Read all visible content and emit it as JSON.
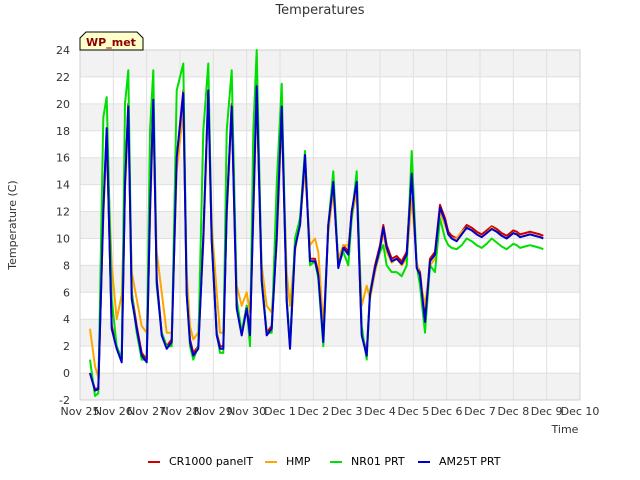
{
  "chart_data": {
    "type": "line",
    "title": "Temperatures",
    "xlabel": "Time",
    "ylabel": "Temperature (C)",
    "badge": "WP_met",
    "ylim": [
      -2,
      24
    ],
    "yticks": [
      -2,
      0,
      2,
      4,
      6,
      8,
      10,
      12,
      14,
      16,
      18,
      20,
      22,
      24
    ],
    "ytick_labels": [
      "-2",
      "0",
      "2",
      "4",
      "6",
      "8",
      "10",
      "12",
      "14",
      "16",
      "18",
      "20",
      "22",
      "24"
    ],
    "xlim": [
      0,
      15
    ],
    "xticks": [
      0,
      1,
      2,
      3,
      4,
      5,
      6,
      7,
      8,
      9,
      10,
      11,
      12,
      13,
      14,
      15
    ],
    "xtick_labels": [
      "Nov 25",
      "Nov 26",
      "Nov 27",
      "Nov 28",
      "Nov 29",
      "Nov 30",
      "Dec 1",
      "Dec 2",
      "Dec 3",
      "Dec 4",
      "Dec 5",
      "Dec 6",
      "Dec 7",
      "Dec 8",
      "Dec 9",
      "Dec 10"
    ],
    "x_unit": "days since Nov 25",
    "colors": {
      "background": "#ffffff",
      "band": "#f2f2f2",
      "grid": "#e0e0e0",
      "badge_fill": "#ffffcc",
      "badge_text": "#8b0000"
    },
    "series": [
      {
        "name": "CR1000 panelT",
        "color": "#cc0000",
        "x": [
          0.3,
          0.45,
          0.55,
          0.7,
          0.8,
          0.95,
          1.1,
          1.25,
          1.35,
          1.45,
          1.55,
          1.7,
          1.85,
          2.0,
          2.1,
          2.2,
          2.3,
          2.45,
          2.6,
          2.75,
          2.9,
          3.1,
          3.2,
          3.3,
          3.4,
          3.55,
          3.7,
          3.85,
          3.95,
          4.1,
          4.2,
          4.3,
          4.4,
          4.55,
          4.7,
          4.85,
          5.0,
          5.1,
          5.2,
          5.3,
          5.45,
          5.6,
          5.75,
          5.9,
          6.05,
          6.2,
          6.3,
          6.45,
          6.6,
          6.75,
          6.9,
          7.05,
          7.15,
          7.3,
          7.45,
          7.6,
          7.75,
          7.9,
          8.05,
          8.15,
          8.3,
          8.45,
          8.6,
          8.7,
          8.85,
          9.0,
          9.1,
          9.2,
          9.35,
          9.5,
          9.65,
          9.8,
          9.95,
          10.1,
          10.2,
          10.35,
          10.5,
          10.65,
          10.8,
          10.95,
          11.05,
          11.15,
          11.3,
          11.45,
          11.6,
          11.75,
          11.9,
          12.05,
          12.2,
          12.35,
          12.5,
          12.65,
          12.8,
          12.9,
          13.0,
          13.1,
          13.2,
          13.35,
          13.5,
          13.65,
          13.8,
          13.9
        ],
        "values": [
          0.0,
          -1.2,
          -1.1,
          12.0,
          18.0,
          3.5,
          2.0,
          1.0,
          14.0,
          20.0,
          6.0,
          3.5,
          1.5,
          1.0,
          12.0,
          20.5,
          7.0,
          3.0,
          2.0,
          2.5,
          16.0,
          21.0,
          6.0,
          2.5,
          1.5,
          2.0,
          10.0,
          21.0,
          10.0,
          3.0,
          2.0,
          2.0,
          12.0,
          20.0,
          5.0,
          3.0,
          5.0,
          3.0,
          12.0,
          21.5,
          7.0,
          3.0,
          3.5,
          10.0,
          20.0,
          5.5,
          2.0,
          9.5,
          11.0,
          16.0,
          8.5,
          8.5,
          7.5,
          2.5,
          11.0,
          14.0,
          8.0,
          9.5,
          9.0,
          12.0,
          14.0,
          3.0,
          1.5,
          6.0,
          8.0,
          9.5,
          11.0,
          9.5,
          8.5,
          8.7,
          8.3,
          9.0,
          15.0,
          8.0,
          7.5,
          4.0,
          8.5,
          9.0,
          12.5,
          11.5,
          10.5,
          10.2,
          10.0,
          10.5,
          11.0,
          10.8,
          10.5,
          10.3,
          10.6,
          10.9,
          10.7,
          10.4,
          10.2,
          10.4,
          10.6,
          10.5,
          10.3,
          10.4,
          10.5,
          10.4,
          10.3,
          10.2
        ]
      },
      {
        "name": "HMP",
        "color": "#ffa500",
        "x": [
          0.3,
          0.45,
          0.55,
          0.7,
          0.8,
          0.95,
          1.1,
          1.25,
          1.35,
          1.45,
          1.55,
          1.7,
          1.85,
          2.0,
          2.1,
          2.2,
          2.3,
          2.45,
          2.6,
          2.75,
          2.9,
          3.1,
          3.2,
          3.3,
          3.4,
          3.55,
          3.7,
          3.85,
          3.95,
          4.1,
          4.2,
          4.3,
          4.4,
          4.55,
          4.7,
          4.85,
          5.0,
          5.1,
          5.2,
          5.3,
          5.45,
          5.6,
          5.75,
          5.9,
          6.05,
          6.2,
          6.3,
          6.45,
          6.6,
          6.75,
          6.9,
          7.05,
          7.15,
          7.3,
          7.45,
          7.6,
          7.75,
          7.9,
          8.05,
          8.15,
          8.3,
          8.45,
          8.6,
          8.7,
          8.85,
          9.0,
          9.1,
          9.2,
          9.35,
          9.5,
          9.65,
          9.8,
          9.95,
          10.1,
          10.2,
          10.35,
          10.5,
          10.65,
          10.8,
          10.95,
          11.05,
          11.15,
          11.3,
          11.45,
          11.6,
          11.75,
          11.9,
          12.05,
          12.2,
          12.35,
          12.5,
          12.65,
          12.8,
          12.9,
          13.0,
          13.1,
          13.2,
          13.35,
          13.5,
          13.65,
          13.8,
          13.9
        ],
        "values": [
          3.3,
          0.5,
          -0.3,
          11.5,
          17.5,
          8.0,
          4.0,
          5.8,
          13.5,
          19.0,
          7.5,
          5.5,
          3.5,
          3.0,
          11.5,
          19.5,
          9.0,
          6.0,
          3.0,
          3.0,
          15.0,
          19.5,
          7.5,
          3.5,
          2.5,
          3.0,
          9.5,
          20.5,
          11.0,
          6.0,
          3.0,
          3.0,
          11.5,
          19.5,
          6.5,
          5.0,
          6.0,
          4.5,
          11.5,
          20.5,
          8.0,
          5.0,
          4.5,
          9.5,
          19.0,
          7.5,
          5.0,
          9.0,
          11.5,
          15.0,
          9.5,
          10.0,
          9.0,
          3.5,
          10.5,
          13.5,
          8.5,
          9.5,
          9.5,
          11.5,
          13.5,
          5.0,
          6.5,
          5.5,
          7.5,
          9.0,
          10.5,
          9.0,
          8.2,
          8.5,
          8.0,
          8.5,
          13.0,
          8.3,
          7.0,
          5.0,
          8.0,
          8.5,
          12.0,
          11.0,
          10.3,
          10.0,
          10.0,
          10.5,
          10.8,
          10.6,
          10.3,
          10.1,
          10.4,
          10.8,
          10.5,
          10.2,
          10.0,
          10.2,
          10.4,
          10.3,
          10.1,
          10.2,
          10.3,
          10.2,
          10.1,
          10.0
        ]
      },
      {
        "name": "NR01 PRT",
        "color": "#00e000",
        "x": [
          0.3,
          0.45,
          0.55,
          0.7,
          0.8,
          0.95,
          1.1,
          1.25,
          1.35,
          1.45,
          1.55,
          1.7,
          1.85,
          2.0,
          2.1,
          2.2,
          2.3,
          2.45,
          2.6,
          2.75,
          2.9,
          3.1,
          3.2,
          3.3,
          3.4,
          3.55,
          3.7,
          3.85,
          3.95,
          4.1,
          4.2,
          4.3,
          4.4,
          4.55,
          4.7,
          4.85,
          5.0,
          5.1,
          5.2,
          5.3,
          5.45,
          5.6,
          5.75,
          5.9,
          6.05,
          6.2,
          6.3,
          6.45,
          6.6,
          6.75,
          6.9,
          7.05,
          7.15,
          7.3,
          7.45,
          7.6,
          7.75,
          7.9,
          8.05,
          8.15,
          8.3,
          8.45,
          8.6,
          8.7,
          8.85,
          9.0,
          9.1,
          9.2,
          9.35,
          9.5,
          9.65,
          9.8,
          9.95,
          10.1,
          10.2,
          10.35,
          10.5,
          10.65,
          10.8,
          10.95,
          11.05,
          11.15,
          11.3,
          11.45,
          11.6,
          11.75,
          11.9,
          12.05,
          12.2,
          12.35,
          12.5,
          12.65,
          12.8,
          12.9,
          13.0,
          13.1,
          13.2,
          13.35,
          13.5,
          13.65,
          13.8,
          13.9
        ],
        "values": [
          1.0,
          -1.7,
          -1.5,
          19.0,
          20.5,
          5.5,
          2.0,
          1.0,
          20.0,
          22.5,
          6.0,
          3.0,
          1.0,
          1.0,
          18.0,
          22.5,
          6.5,
          3.0,
          2.0,
          2.0,
          21.0,
          23.0,
          6.0,
          2.0,
          1.0,
          2.0,
          18.0,
          23.0,
          10.0,
          3.0,
          1.5,
          1.5,
          18.0,
          22.5,
          5.5,
          3.0,
          5.0,
          2.0,
          18.0,
          24.0,
          7.0,
          3.0,
          3.0,
          14.0,
          21.5,
          5.5,
          2.0,
          10.0,
          11.5,
          16.5,
          8.0,
          8.3,
          7.0,
          2.0,
          11.0,
          15.0,
          8.0,
          9.0,
          8.0,
          11.5,
          15.0,
          3.5,
          1.0,
          6.0,
          7.8,
          9.0,
          9.5,
          8.0,
          7.5,
          7.5,
          7.2,
          8.0,
          16.5,
          8.0,
          6.5,
          3.0,
          8.0,
          7.5,
          11.5,
          10.0,
          9.5,
          9.3,
          9.2,
          9.5,
          10.0,
          9.8,
          9.5,
          9.3,
          9.6,
          10.0,
          9.7,
          9.4,
          9.2,
          9.4,
          9.6,
          9.5,
          9.3,
          9.4,
          9.5,
          9.4,
          9.3,
          9.2
        ]
      },
      {
        "name": "AM25T PRT",
        "color": "#0000cc",
        "x": [
          0.3,
          0.45,
          0.55,
          0.7,
          0.8,
          0.95,
          1.1,
          1.25,
          1.35,
          1.45,
          1.55,
          1.7,
          1.85,
          2.0,
          2.1,
          2.2,
          2.3,
          2.45,
          2.6,
          2.75,
          2.9,
          3.1,
          3.2,
          3.3,
          3.4,
          3.55,
          3.7,
          3.85,
          3.95,
          4.1,
          4.2,
          4.3,
          4.4,
          4.55,
          4.7,
          4.85,
          5.0,
          5.1,
          5.2,
          5.3,
          5.45,
          5.6,
          5.75,
          5.9,
          6.05,
          6.2,
          6.3,
          6.45,
          6.6,
          6.75,
          6.9,
          7.05,
          7.15,
          7.3,
          7.45,
          7.6,
          7.75,
          7.9,
          8.05,
          8.15,
          8.3,
          8.45,
          8.6,
          8.7,
          8.85,
          9.0,
          9.1,
          9.2,
          9.35,
          9.5,
          9.65,
          9.8,
          9.95,
          10.1,
          10.2,
          10.35,
          10.5,
          10.65,
          10.8,
          10.95,
          11.05,
          11.15,
          11.3,
          11.45,
          11.6,
          11.75,
          11.9,
          12.05,
          12.2,
          12.35,
          12.5,
          12.65,
          12.8,
          12.9,
          13.0,
          13.1,
          13.2,
          13.35,
          13.5,
          13.65,
          13.8,
          13.9
        ],
        "values": [
          0.0,
          -1.3,
          -1.2,
          12.0,
          18.2,
          3.3,
          1.8,
          0.8,
          14.0,
          19.8,
          5.5,
          3.3,
          1.3,
          0.8,
          12.0,
          20.3,
          6.8,
          2.8,
          1.8,
          2.3,
          16.0,
          20.8,
          5.8,
          2.3,
          1.3,
          1.8,
          10.0,
          21.0,
          9.8,
          2.8,
          1.8,
          1.8,
          12.0,
          19.8,
          4.8,
          2.8,
          4.8,
          2.8,
          12.0,
          21.3,
          6.8,
          2.8,
          3.3,
          10.0,
          19.8,
          5.3,
          1.8,
          9.3,
          11.0,
          16.2,
          8.3,
          8.3,
          7.3,
          2.3,
          11.0,
          14.2,
          7.8,
          9.3,
          8.8,
          12.0,
          14.2,
          2.8,
          1.3,
          5.8,
          7.8,
          9.3,
          10.8,
          9.3,
          8.3,
          8.5,
          8.1,
          8.8,
          14.8,
          7.8,
          7.3,
          3.8,
          8.3,
          8.8,
          12.3,
          11.3,
          10.3,
          10.0,
          9.8,
          10.3,
          10.8,
          10.6,
          10.3,
          10.1,
          10.4,
          10.7,
          10.5,
          10.2,
          10.0,
          10.2,
          10.4,
          10.3,
          10.1,
          10.2,
          10.3,
          10.2,
          10.1,
          10.0
        ]
      }
    ]
  }
}
